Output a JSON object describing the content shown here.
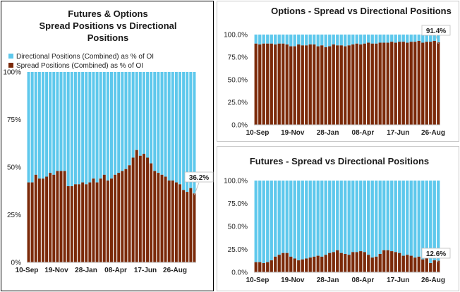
{
  "colors": {
    "directional": "#5ec8ec",
    "spread": "#7b2a0a",
    "axis": "#bfbfbf"
  },
  "chart_data": [
    {
      "id": "combined",
      "type": "bar",
      "stacked": true,
      "title_lines": [
        "Futures & Options",
        "Spread  Positions  vs Directional",
        "Positions"
      ],
      "legend": [
        "Directional Positions (Combined) as % of OI",
        "Spread Positions (Combined) as % of OI"
      ],
      "legend_position": "top-left",
      "yticks": [
        "0%",
        "25%",
        "50%",
        "75%",
        "100%"
      ],
      "ylim": [
        0,
        100
      ],
      "xticks": [
        "10-Sep",
        "19-Nov",
        "28-Jan",
        "08-Apr",
        "17-Jun",
        "26-Aug"
      ],
      "last_label": "36.2%",
      "series": [
        {
          "name": "Directional Positions (Combined) as % of OI",
          "values": "complement"
        },
        {
          "name": "Spread Positions (Combined) as % of OI",
          "values": [
            42,
            42,
            46,
            44,
            44,
            45,
            47,
            46,
            48,
            48,
            48,
            40,
            40,
            41,
            41,
            42,
            41,
            42,
            44,
            42,
            44,
            46,
            43,
            44,
            46,
            47,
            48,
            49,
            51,
            55,
            59,
            56,
            57,
            55,
            52,
            48,
            47,
            46,
            45,
            43,
            43,
            42,
            41,
            38,
            37,
            39,
            36.2
          ]
        }
      ]
    },
    {
      "id": "options",
      "type": "bar",
      "stacked": true,
      "title": "Options - Spread vs Directional Positions",
      "yticks": [
        "0.0%",
        "25.0%",
        "50.0%",
        "75.0%",
        "100.0%"
      ],
      "ylim": [
        0,
        100
      ],
      "xticks": [
        "10-Sep",
        "19-Nov",
        "28-Jan",
        "08-Apr",
        "17-Jun",
        "26-Aug"
      ],
      "last_label": "91.4%",
      "series": [
        {
          "name": "Directional",
          "values": "complement"
        },
        {
          "name": "Spread",
          "values": [
            90,
            89,
            90,
            90,
            90,
            89,
            90,
            90,
            89,
            87,
            87,
            89,
            88,
            88,
            89,
            89,
            87,
            88,
            86,
            87,
            89,
            88,
            88,
            87,
            88,
            89,
            90,
            89,
            90,
            91,
            90,
            90,
            91,
            91,
            91,
            92,
            91,
            92,
            92,
            91,
            92,
            92,
            93,
            91,
            92,
            92,
            93,
            91.4
          ]
        }
      ]
    },
    {
      "id": "futures",
      "type": "bar",
      "stacked": true,
      "title": "Futures - Spread vs Directional Positions",
      "yticks": [
        "0.0%",
        "25.0%",
        "50.0%",
        "75.0%",
        "100.0%"
      ],
      "ylim": [
        0,
        100
      ],
      "xticks": [
        "10-Sep",
        "19-Nov",
        "28-Jan",
        "08-Apr",
        "17-Jun",
        "26-Aug"
      ],
      "last_label": "12.6%",
      "series": [
        {
          "name": "Directional",
          "values": "complement"
        },
        {
          "name": "Spread",
          "values": [
            11,
            11,
            10,
            11,
            13,
            17,
            19,
            21,
            21,
            17,
            15,
            13,
            14,
            15,
            16,
            17,
            18,
            17,
            19,
            21,
            22,
            24,
            21,
            20,
            19,
            22,
            22,
            23,
            22,
            19,
            16,
            17,
            20,
            24,
            24,
            23,
            22,
            21,
            18,
            19,
            18,
            16,
            17,
            14,
            16,
            10,
            13,
            12.6
          ]
        }
      ]
    }
  ]
}
